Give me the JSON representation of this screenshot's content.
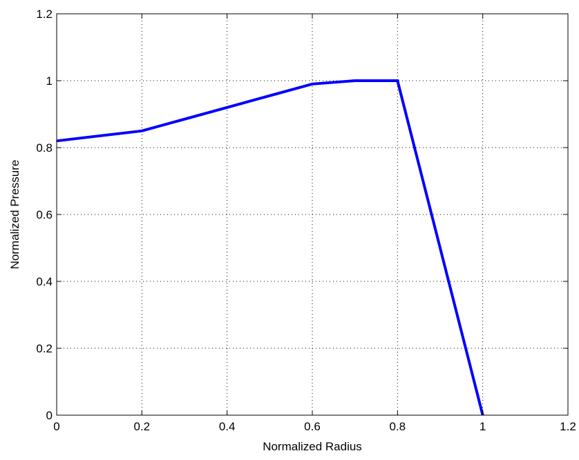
{
  "chart_data": {
    "type": "line",
    "title": "",
    "xlabel": "Normalized Radius",
    "ylabel": "Normalized Pressure",
    "xlim": [
      0,
      1.2
    ],
    "ylim": [
      0,
      1.2
    ],
    "xticks": [
      0,
      0.2,
      0.4,
      0.6,
      0.8,
      1,
      1.2
    ],
    "yticks": [
      0,
      0.2,
      0.4,
      0.6,
      0.8,
      1,
      1.2
    ],
    "xtick_labels": [
      "0",
      "0.2",
      "0.4",
      "0.6",
      "0.8",
      "1",
      "1.2"
    ],
    "ytick_labels": [
      "0",
      "0.2",
      "0.4",
      "0.6",
      "0.8",
      "1",
      "1.2"
    ],
    "grid": true,
    "grid_style": "dotted",
    "series": [
      {
        "color": "#0000ff",
        "x": [
          0,
          0.2,
          0.4,
          0.6,
          0.7,
          0.8,
          1.0
        ],
        "y": [
          0.82,
          0.85,
          0.92,
          0.99,
          1.0,
          1.0,
          0.0
        ]
      }
    ]
  }
}
